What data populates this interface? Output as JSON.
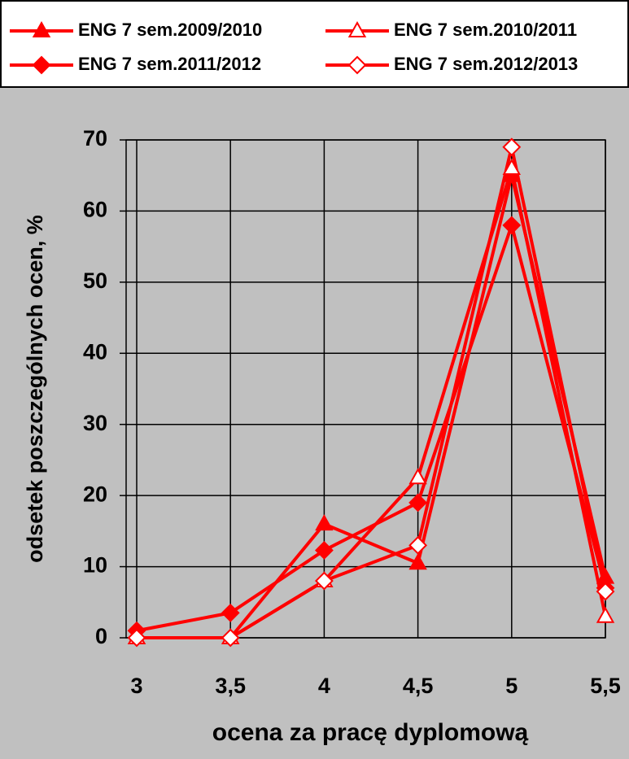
{
  "chart_data": {
    "type": "line",
    "x_label": "ocena za pracę dyplomową",
    "y_label": "odsetek poszczególnych ocen, %",
    "categories": [
      "3",
      "3,5",
      "4",
      "4,5",
      "5",
      "5,5"
    ],
    "series": [
      {
        "name": "ENG 7 sem.2009/2010",
        "color": "#ff0000",
        "marker": "triangle",
        "filled": true,
        "values": [
          0,
          0,
          16,
          10.5,
          65,
          8.5
        ]
      },
      {
        "name": "ENG 7 sem.2010/2011",
        "color": "#ff0000",
        "marker": "triangle",
        "filled": false,
        "values": [
          0,
          0,
          8,
          22.5,
          66,
          3
        ]
      },
      {
        "name": "ENG 7 sem.2011/2012",
        "color": "#ff0000",
        "marker": "diamond",
        "filled": true,
        "values": [
          1,
          3.5,
          12.3,
          19,
          58,
          7
        ]
      },
      {
        "name": "ENG 7 sem.2012/2013",
        "color": "#ff0000",
        "marker": "diamond",
        "filled": false,
        "values": [
          0,
          0,
          8,
          13,
          69,
          6.5
        ]
      }
    ],
    "ylim": [
      0,
      70
    ],
    "yticks": [
      0,
      10,
      20,
      30,
      40,
      50,
      60,
      70
    ],
    "grid": true
  }
}
